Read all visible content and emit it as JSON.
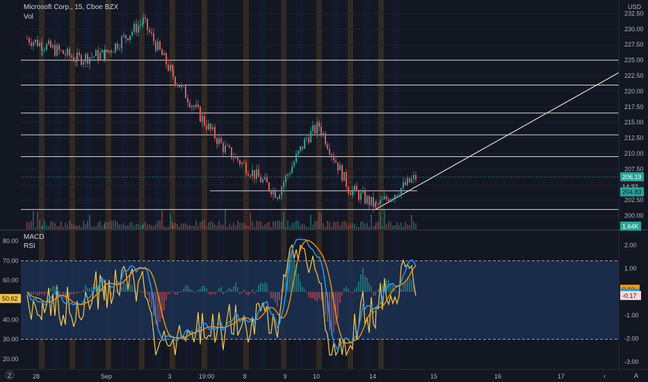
{
  "header": {
    "symbol_line": "Microsoft Corp., 15, Cboe BZX",
    "volume_label": "Vol",
    "currency": "USD",
    "lower_labels": [
      "MACD",
      "RSI"
    ]
  },
  "colors": {
    "background": "#131722",
    "up": "#26a69a",
    "down": "#ef5350",
    "macd": "#2196f3",
    "signal": "#ff9800",
    "rsi": "#f5c242",
    "rsi_band": "#1b2f4f",
    "level_line": "#d9d9d9",
    "price_badge": "#26a69a",
    "session_band": "#e89a2a"
  },
  "chart_data": [
    {
      "type": "candlestick",
      "title": "Microsoft Corp., 15, Cboe BZX",
      "x_ticks": [
        "28",
        "Sep",
        "3",
        "19:00",
        "8",
        "9",
        "10",
        "14",
        "15",
        "16",
        "17"
      ],
      "y_ticks": [
        "232.50",
        "230.00",
        "227.50",
        "225.00",
        "222.50",
        "220.00",
        "217.50",
        "215.00",
        "212.50",
        "210.00",
        "207.50",
        "205.00",
        "202.50",
        "200.00"
      ],
      "ylim": [
        198.5,
        234
      ],
      "key_points": [
        {
          "x": "Aug 27",
          "price": 228.5
        },
        {
          "x": "Aug 28",
          "price": 227.5
        },
        {
          "x": "Aug 31",
          "price": 225.2
        },
        {
          "x": "Sep 1",
          "price": 226.0
        },
        {
          "x": "Sep 2",
          "price": 231.2
        },
        {
          "x": "Sep 3",
          "price": 222.5
        },
        {
          "x": "Sep 3 19:00",
          "price": 215.5
        },
        {
          "x": "Sep 4",
          "price": 211.0
        },
        {
          "x": "Sep 8",
          "price": 203.5
        },
        {
          "x": "Sep 9",
          "price": 212.5
        },
        {
          "x": "Sep 10",
          "price": 214.5
        },
        {
          "x": "Sep 11",
          "price": 204.5
        },
        {
          "x": "Sep 14",
          "price": 201.5
        },
        {
          "x": "Sep 14 late",
          "price": 206.2
        }
      ],
      "horizontal_levels": [
        225.0,
        221.0,
        216.5,
        213.0,
        209.5,
        206.2,
        204.0,
        201.0
      ],
      "trendline": {
        "from": {
          "x": "Sep 14",
          "price": 201.0
        },
        "to": {
          "x": "Sep 17",
          "price": 223.0
        }
      },
      "last_price": "206.19",
      "countdown": "14:32",
      "hidden_badge": "204.83",
      "volume_badge": "1.64K"
    },
    {
      "type": "indicator",
      "series": [
        {
          "name": "MACD"
        },
        {
          "name": "RSI"
        }
      ],
      "rsi_ticks": [
        "80.00",
        "70.00",
        "60.00",
        "50.00",
        "40.00",
        "30.00",
        "20.00"
      ],
      "rsi_ylim": [
        15,
        85
      ],
      "rsi_bands": [
        70,
        30
      ],
      "macd_ticks": [
        "2.00",
        "1.00",
        "0.00",
        "-1.00",
        "-2.00",
        "-3.00"
      ],
      "macd_ylim": [
        -3.3,
        2.6
      ],
      "badges": {
        "rsi": "50.62",
        "signal": "0.10",
        "macd": "-0.07",
        "histogram": "-0.17"
      }
    }
  ]
}
